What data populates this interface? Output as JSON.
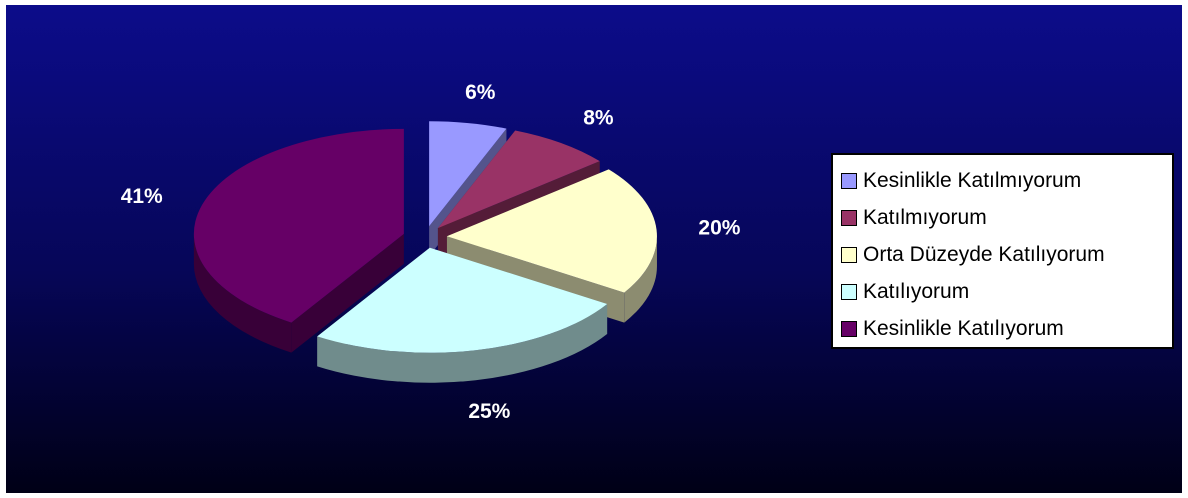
{
  "chart_data": {
    "type": "pie",
    "style": "3d-exploded",
    "slices": [
      {
        "label": "Kesinlikle Katılmıyorum",
        "value": 6,
        "value_label": "6%",
        "color": "#9999ff"
      },
      {
        "label": "Katılmıyorum",
        "value": 8,
        "value_label": "8%",
        "color": "#993366"
      },
      {
        "label": "Orta Düzeyde Katılıyorum",
        "value": 20,
        "value_label": "20%",
        "color": "#ffffcc"
      },
      {
        "label": "Katılıyorum",
        "value": 25,
        "value_label": "25%",
        "color": "#ccffff"
      },
      {
        "label": "Kesinlikle Katılıyorum",
        "value": 41,
        "value_label": "41%",
        "color": "#660066"
      }
    ],
    "legend_position": "right",
    "background": "#060657"
  }
}
